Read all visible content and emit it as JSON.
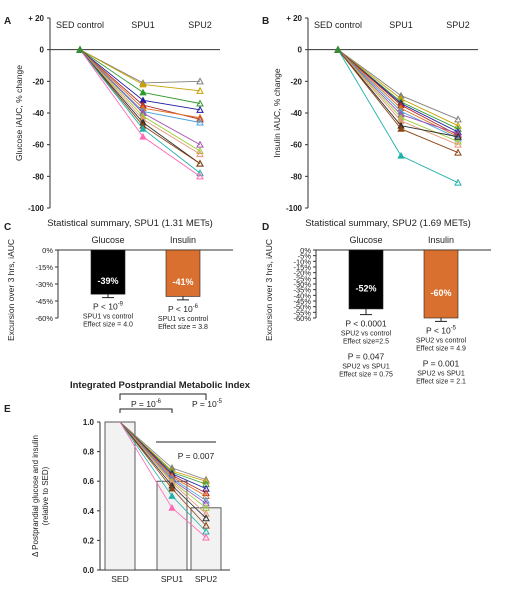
{
  "panel_letters": {
    "a": "A",
    "b": "B",
    "c": "C",
    "d": "D",
    "e": "E"
  },
  "colors": {
    "glucose_bar": "#000000",
    "insulin_bar": "#d9702f",
    "index_bar": "#f2f2f2",
    "spaghetti": [
      "#808080",
      "#c8a000",
      "#2f9b2f",
      "#1e1ea0",
      "#b03030",
      "#e07020",
      "#4aa0d8",
      "#a050b0",
      "#9acd32",
      "#e9967a",
      "#303030",
      "#8b4513",
      "#20b2aa",
      "#ff69b4"
    ]
  },
  "chart_data": [
    {
      "id": "A",
      "type": "line",
      "categories": [
        "SED control",
        "SPU1",
        "SPU2"
      ],
      "ylabel": "Glucose iAUC, % change",
      "ylim": [
        -100,
        20
      ],
      "yticks": [
        20,
        0,
        -20,
        -40,
        -60,
        -80,
        -100
      ],
      "ytick_labels": [
        "+ 20",
        "0",
        "-20",
        "-40",
        "-60",
        "-80",
        "-100"
      ],
      "series": [
        {
          "values": [
            0,
            -21,
            -20
          ]
        },
        {
          "values": [
            0,
            -22,
            -26
          ]
        },
        {
          "values": [
            0,
            -27,
            -34
          ]
        },
        {
          "values": [
            0,
            -32,
            -38
          ]
        },
        {
          "values": [
            0,
            -35,
            -44
          ]
        },
        {
          "values": [
            0,
            -37,
            -43
          ]
        },
        {
          "values": [
            0,
            -39,
            -46
          ]
        },
        {
          "values": [
            0,
            -40,
            -60
          ]
        },
        {
          "values": [
            0,
            -42,
            -64
          ]
        },
        {
          "values": [
            0,
            -44,
            -66
          ]
        },
        {
          "values": [
            0,
            -46,
            -72
          ]
        },
        {
          "values": [
            0,
            -48,
            -72
          ]
        },
        {
          "values": [
            0,
            -50,
            -78
          ]
        },
        {
          "values": [
            0,
            -55,
            -80
          ]
        }
      ]
    },
    {
      "id": "B",
      "type": "line",
      "categories": [
        "SED control",
        "SPU1",
        "SPU2"
      ],
      "ylabel": "Insulin iAUC, % change",
      "ylim": [
        -100,
        20
      ],
      "yticks": [
        20,
        0,
        -20,
        -40,
        -60,
        -80,
        -100
      ],
      "ytick_labels": [
        "+ 20",
        "0",
        "-20",
        "-40",
        "-60",
        "-80",
        "-100"
      ],
      "series": [
        {
          "values": [
            0,
            -29,
            -44
          ]
        },
        {
          "values": [
            0,
            -31,
            -48
          ]
        },
        {
          "values": [
            0,
            -33,
            -50
          ]
        },
        {
          "values": [
            0,
            -34,
            -52
          ]
        },
        {
          "values": [
            0,
            -35,
            -54
          ]
        },
        {
          "values": [
            0,
            -37,
            -55
          ]
        },
        {
          "values": [
            0,
            -39,
            -56
          ]
        },
        {
          "values": [
            0,
            -41,
            -53
          ]
        },
        {
          "values": [
            0,
            -43,
            -58
          ]
        },
        {
          "values": [
            0,
            -45,
            -60
          ]
        },
        {
          "values": [
            0,
            -48,
            -55
          ]
        },
        {
          "values": [
            0,
            -50,
            -65
          ]
        },
        {
          "values": [
            0,
            -67,
            -84
          ]
        }
      ]
    },
    {
      "id": "C",
      "type": "bar",
      "title": "Statistical summary, SPU1 (1.31 METs)",
      "categories": [
        "Glucose",
        "Insulin"
      ],
      "values": [
        -39,
        -41
      ],
      "errors": [
        3,
        3
      ],
      "value_labels": [
        "-39%",
        "-41%"
      ],
      "ylabel": "Excursion over 3 hrs, iAUC",
      "ylim": [
        -60,
        0
      ],
      "yticks": [
        0,
        -15,
        -30,
        -45,
        -60
      ],
      "ytick_labels": [
        "0%",
        "-15%",
        "-30%",
        "-45%",
        "-60%"
      ],
      "annotations": [
        {
          "p_main": "P < 10",
          "p_exp": "-9",
          "lines": [
            "SPU1 vs control",
            "Effect size = 4.0"
          ]
        },
        {
          "p_main": "P < 10",
          "p_exp": "-6",
          "lines": [
            "SPU1 vs control",
            "Effect size = 3.8"
          ]
        }
      ]
    },
    {
      "id": "D",
      "type": "bar",
      "title": "Statistical summary, SPU2 (1.69 METs)",
      "categories": [
        "Glucose",
        "Insulin"
      ],
      "values": [
        -52,
        -60
      ],
      "errors": [
        5,
        3
      ],
      "value_labels": [
        "-52%",
        "-60%"
      ],
      "ylabel": "Excursion over 3 hrs, iAUC",
      "ylim": [
        -60,
        0
      ],
      "yticks": [
        0,
        -5,
        -10,
        -15,
        -20,
        -25,
        -30,
        -35,
        -40,
        -45,
        -50,
        -55,
        -60
      ],
      "ytick_labels": [
        "0%",
        "-5%",
        "-10%",
        "-15%",
        "-20%",
        "-25%",
        "-30%",
        "-35%",
        "-40%",
        "-45%",
        "-50%",
        "-55%",
        "-60%"
      ],
      "annotations": [
        {
          "groups": [
            {
              "p_main": "P < 0.0001",
              "p_exp": "",
              "lines": [
                "SPU2 vs control",
                "Effect size=2.5"
              ]
            },
            {
              "p_main": "P = 0.047",
              "p_exp": "",
              "lines": [
                "SPU2 vs SPU1",
                "Effect size = 0.75"
              ]
            }
          ]
        },
        {
          "groups": [
            {
              "p_main": "P < 10",
              "p_exp": "-5",
              "lines": [
                "SPU2 vs control",
                "Effect size = 4.9"
              ]
            },
            {
              "p_main": "P = 0.001",
              "p_exp": "",
              "lines": [
                "SPU2 vs SPU1",
                "Effect size = 2.1"
              ]
            }
          ]
        }
      ]
    },
    {
      "id": "E",
      "type": "bar",
      "title": "Integrated Postprandial Metabolic Index",
      "categories": [
        "SED",
        "SPU1",
        "SPU2"
      ],
      "values": [
        1.0,
        0.6,
        0.42
      ],
      "ylabel": "Δ Postprandial glucose and insulin (relative to SED)",
      "ylabel_lines": [
        "Δ Postprandial glucose and insulin",
        "(relative to SED)"
      ],
      "ylim": [
        0,
        1.0
      ],
      "yticks": [
        0,
        0.2,
        0.4,
        0.6,
        0.8,
        1.0
      ],
      "ytick_labels": [
        "0.0",
        "0.2",
        "0.4",
        "0.6",
        "0.8",
        "1.0"
      ],
      "brackets": [
        {
          "p_main": "P = 10",
          "p_exp": "-6"
        },
        {
          "p_main": "P = 10",
          "p_exp": "-5"
        },
        {
          "p_main": "P = 0.007",
          "p_exp": ""
        }
      ],
      "series": [
        {
          "values": [
            1.0,
            0.69,
            0.61
          ]
        },
        {
          "values": [
            1.0,
            0.67,
            0.6
          ]
        },
        {
          "values": [
            1.0,
            0.66,
            0.58
          ]
        },
        {
          "values": [
            1.0,
            0.65,
            0.55
          ]
        },
        {
          "values": [
            1.0,
            0.64,
            0.52
          ]
        },
        {
          "values": [
            1.0,
            0.63,
            0.5
          ]
        },
        {
          "values": [
            1.0,
            0.62,
            0.47
          ]
        },
        {
          "values": [
            1.0,
            0.61,
            0.45
          ]
        },
        {
          "values": [
            1.0,
            0.6,
            0.42
          ]
        },
        {
          "values": [
            1.0,
            0.59,
            0.38
          ]
        },
        {
          "values": [
            1.0,
            0.57,
            0.35
          ]
        },
        {
          "values": [
            1.0,
            0.55,
            0.3
          ]
        },
        {
          "values": [
            1.0,
            0.5,
            0.26
          ]
        },
        {
          "values": [
            1.0,
            0.42,
            0.22
          ]
        }
      ]
    }
  ]
}
